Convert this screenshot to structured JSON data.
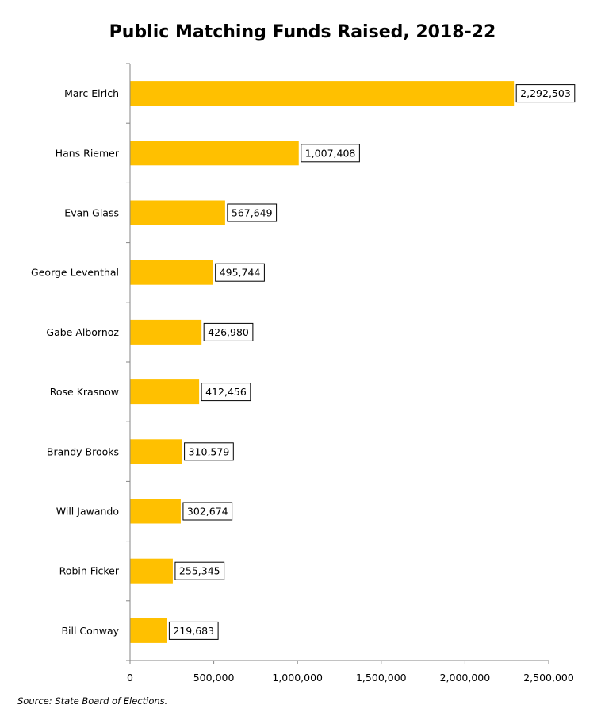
{
  "chart_data": {
    "type": "bar",
    "orientation": "horizontal",
    "title": "Public Matching Funds Raised, 2018-22",
    "categories": [
      "Marc Elrich",
      "Hans Riemer",
      "Evan Glass",
      "George Leventhal",
      "Gabe Albornoz",
      "Rose Krasnow",
      "Brandy Brooks",
      "Will Jawando",
      "Robin Ficker",
      "Bill Conway"
    ],
    "values": [
      2292503,
      1007408,
      567649,
      495744,
      426980,
      412456,
      310579,
      302674,
      255345,
      219683
    ],
    "value_labels": [
      "2,292,503",
      "1,007,408",
      "567,649",
      "495,744",
      "426,980",
      "412,456",
      "310,579",
      "302,674",
      "255,345",
      "219,683"
    ],
    "xlim": [
      0,
      2500000
    ],
    "x_ticks": [
      0,
      500000,
      1000000,
      1500000,
      2000000,
      2500000
    ],
    "x_tick_labels": [
      "0",
      "500,000",
      "1,000,000",
      "1,500,000",
      "2,000,000",
      "2,500,000"
    ],
    "xlabel": "",
    "ylabel": "",
    "grid": false,
    "legend": "none",
    "bar_color": "#FFC000",
    "source": "Source: State Board of Elections."
  }
}
